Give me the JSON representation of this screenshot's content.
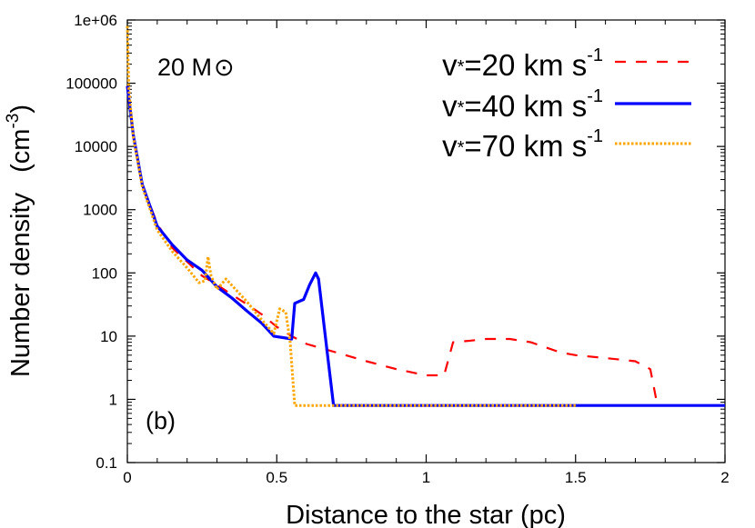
{
  "chart_data": {
    "type": "line",
    "xlabel": "Distance to the star (pc)",
    "ylabel": "Number density",
    "ylabel_unit_base": "(cm",
    "ylabel_unit_exp": "-3",
    "ylabel_unit_close": ")",
    "yscale": "log",
    "xlim": [
      0,
      2
    ],
    "ylim": [
      0.1,
      1000000
    ],
    "x_ticks": [
      0,
      0.5,
      1,
      1.5,
      2
    ],
    "x_tick_labels": [
      "0",
      "0.5",
      "1",
      "1.5",
      "2"
    ],
    "y_ticks": [
      0.1,
      1,
      10,
      100,
      1000,
      10000,
      100000,
      1000000
    ],
    "y_tick_labels": [
      "0.1",
      "1",
      "10",
      "100",
      "1000",
      "10000",
      "100000",
      "1e+06"
    ],
    "grid": false,
    "legend_position": "top-right",
    "annotations": {
      "mass_label": "20 M",
      "mass_symbol": "⊙",
      "panel_label": "(b)"
    },
    "series": [
      {
        "name": "v*=20 km s-1",
        "label_main": "v",
        "label_sub": "*",
        "label_rest": "=20 km s",
        "label_sup": "-1",
        "color": "#ff0000",
        "style": "dashed",
        "x": [
          0,
          0.02,
          0.05,
          0.1,
          0.15,
          0.2,
          0.25,
          0.3,
          0.35,
          0.4,
          0.45,
          0.5,
          0.55,
          0.6,
          0.7,
          0.8,
          0.9,
          1.0,
          1.06,
          1.09,
          1.15,
          1.2,
          1.28,
          1.35,
          1.45,
          1.5,
          1.6,
          1.7,
          1.75,
          1.77
        ],
        "y": [
          90000,
          15000,
          2500,
          600,
          250,
          150,
          90,
          65,
          45,
          32,
          22,
          14,
          10,
          7.5,
          5.5,
          4,
          3,
          2.4,
          2.4,
          8,
          8.5,
          9,
          9,
          8,
          5.5,
          5,
          4.5,
          4,
          3,
          1
        ]
      },
      {
        "name": "v*=40 km s-1",
        "label_main": "v",
        "label_sub": "*",
        "label_rest": "=40 km s",
        "label_sup": "-1",
        "color": "#0000ff",
        "style": "solid",
        "x": [
          0,
          0.02,
          0.05,
          0.1,
          0.15,
          0.2,
          0.25,
          0.3,
          0.35,
          0.4,
          0.45,
          0.49,
          0.55,
          0.56,
          0.59,
          0.61,
          0.63,
          0.64,
          0.67,
          0.69,
          0.8,
          1.0,
          1.2,
          1.5,
          2.0
        ],
        "y": [
          90000,
          15000,
          2500,
          550,
          280,
          160,
          110,
          60,
          40,
          25,
          16,
          10,
          9,
          33,
          38,
          65,
          100,
          80,
          5,
          0.8,
          0.8,
          0.8,
          0.8,
          0.8,
          0.8
        ]
      },
      {
        "name": "v*=70 km s-1",
        "label_main": "v",
        "label_sub": "*",
        "label_rest": "=70 km s",
        "label_sup": "-1",
        "color": "#ffa500",
        "style": "dotted",
        "x": [
          0,
          0.005,
          0.02,
          0.05,
          0.1,
          0.15,
          0.2,
          0.24,
          0.26,
          0.27,
          0.28,
          0.3,
          0.33,
          0.37,
          0.4,
          0.45,
          0.49,
          0.51,
          0.53,
          0.545,
          0.56,
          0.6,
          0.8,
          1.0,
          1.2,
          1.5
        ],
        "y": [
          800000,
          80000,
          14000,
          2300,
          480,
          220,
          120,
          70,
          75,
          180,
          90,
          55,
          80,
          50,
          35,
          18,
          11,
          27,
          24,
          8,
          0.8,
          0.8,
          0.8,
          0.8,
          0.8,
          0.8
        ]
      }
    ]
  }
}
